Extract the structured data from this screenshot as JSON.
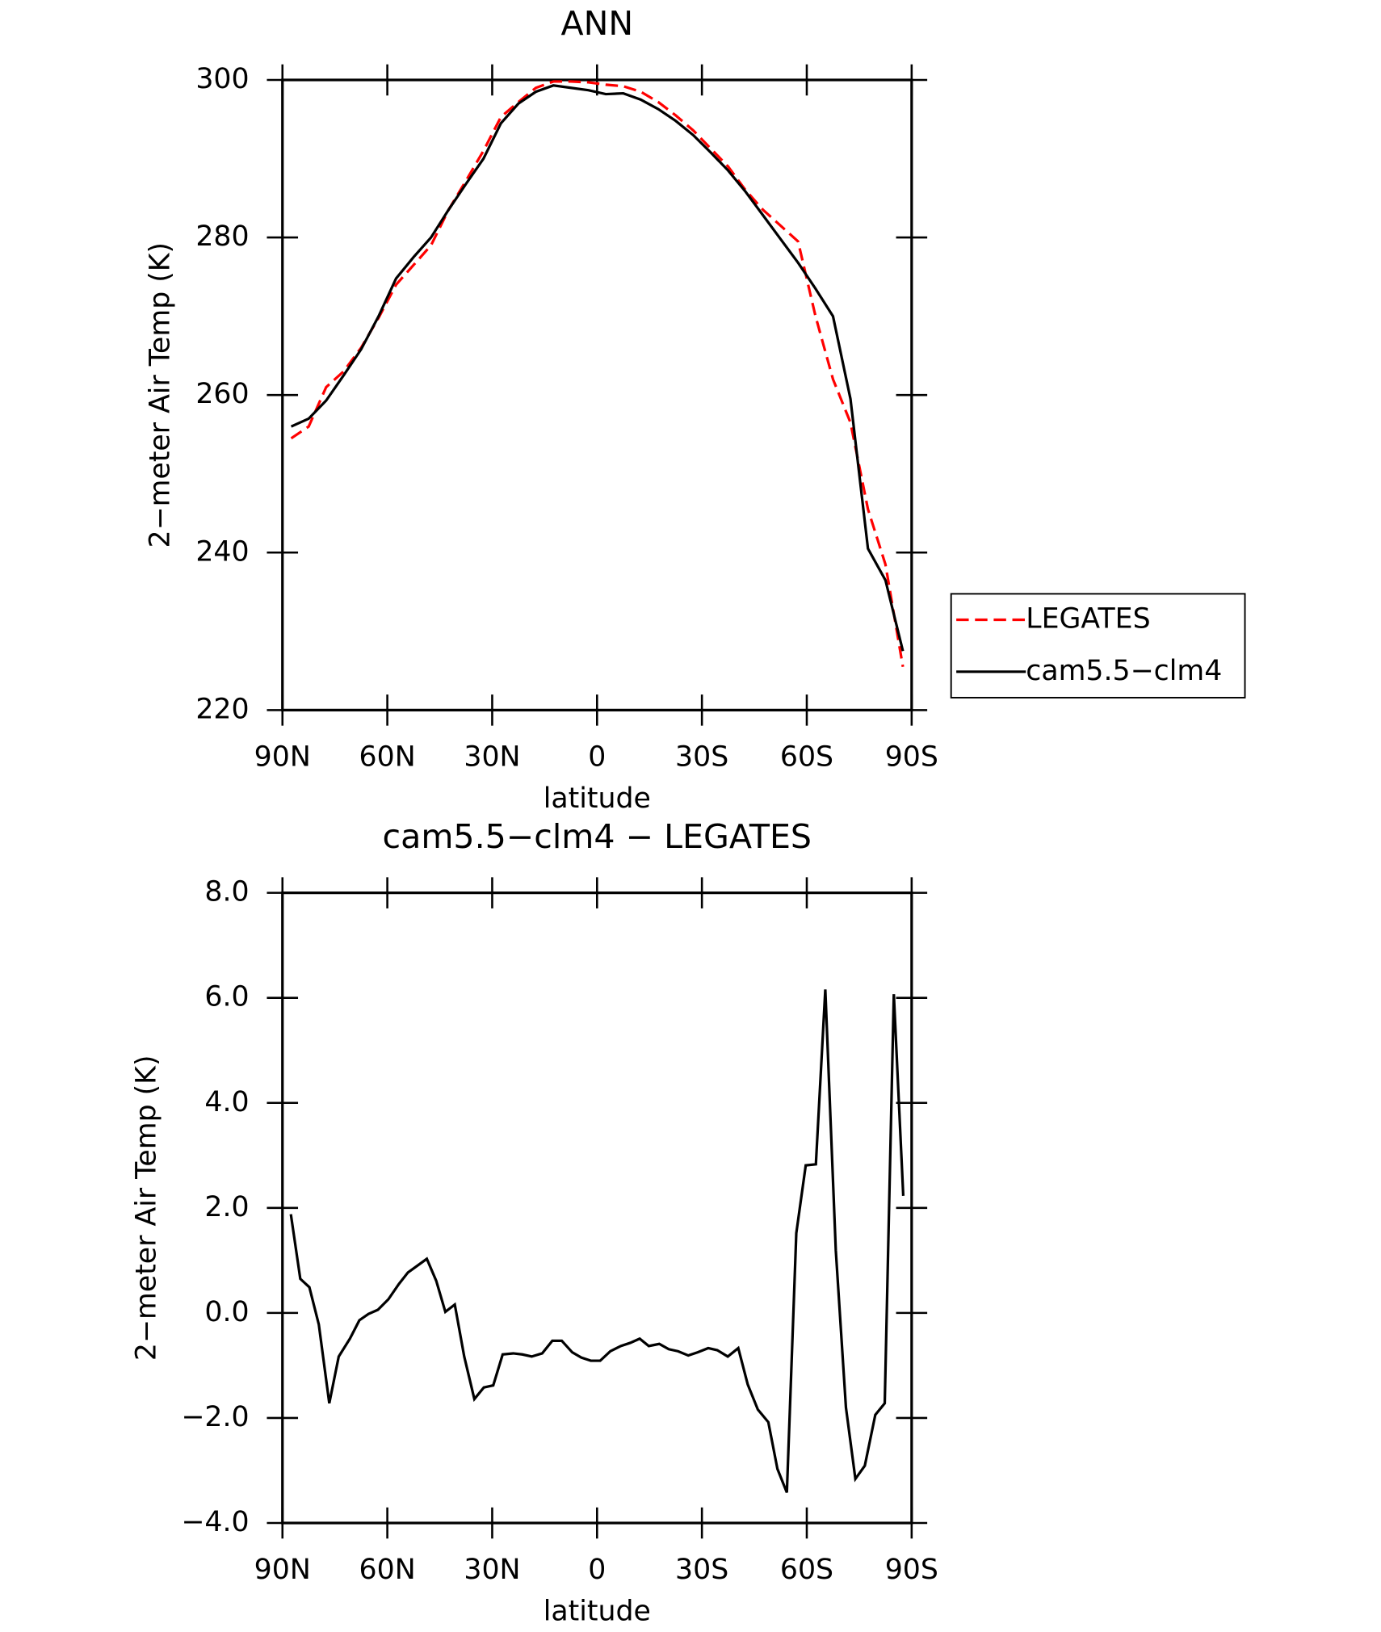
{
  "chart_data": [
    {
      "type": "line",
      "title": "ANN",
      "xlabel": "latitude",
      "ylabel": "2−meter Air Temp (K)",
      "xlim": [
        90,
        -90
      ],
      "xticks": [
        {
          "value": 90,
          "label": "90N"
        },
        {
          "value": 60,
          "label": "60N"
        },
        {
          "value": 30,
          "label": "30N"
        },
        0,
        {
          "value": -30,
          "label": "30S"
        },
        {
          "value": -60,
          "label": "60S"
        },
        {
          "value": -90,
          "label": "90S"
        }
      ],
      "ylim": [
        220,
        300
      ],
      "yticks": [
        220,
        240,
        260,
        280,
        300
      ],
      "x": [
        87.5,
        82.5,
        77.5,
        72.5,
        67.5,
        62.5,
        57.5,
        52.5,
        47.5,
        42.5,
        37.5,
        32.5,
        27.5,
        22.5,
        17.5,
        12.5,
        7.5,
        2.5,
        -2.5,
        -7.5,
        -12.5,
        -17.5,
        -22.5,
        -27.5,
        -32.5,
        -37.5,
        -42.5,
        -47.5,
        -52.5,
        -57.5,
        -62.5,
        -67.5,
        -72.5,
        -77.5,
        -82.5,
        -87.5
      ],
      "legend": "outside-right",
      "series": [
        {
          "name": "LEGATES",
          "color": "#ff0000",
          "line_style": "dashed",
          "values": [
            254.5,
            256.0,
            261.0,
            263.0,
            266.0,
            269.8,
            274.0,
            276.5,
            279.0,
            283.5,
            287.2,
            291.0,
            295.3,
            297.2,
            299.0,
            299.8,
            299.8,
            299.7,
            299.4,
            299.2,
            298.5,
            297.2,
            295.5,
            293.6,
            291.3,
            289.0,
            286.0,
            283.5,
            281.5,
            279.5,
            270.0,
            262.0,
            256.5,
            245.5,
            238.5,
            225.5
          ]
        },
        {
          "name": "cam5.5−clm4",
          "color": "#000000",
          "line_style": "solid",
          "values": [
            256.0,
            257.0,
            259.3,
            262.5,
            265.8,
            270.0,
            274.8,
            277.5,
            280.0,
            283.5,
            286.8,
            290.0,
            294.5,
            297.0,
            298.5,
            299.3,
            299.0,
            298.7,
            298.2,
            298.3,
            297.5,
            296.3,
            294.8,
            293.0,
            290.8,
            288.5,
            285.8,
            282.8,
            279.8,
            276.8,
            273.5,
            270.0,
            259.5,
            240.5,
            236.5,
            227.5
          ]
        }
      ]
    },
    {
      "type": "line",
      "title": "cam5.5−clm4 − LEGATES",
      "xlabel": "latitude",
      "ylabel": "2−meter Air Temp (K)",
      "xlim": [
        90,
        -90
      ],
      "xticks": [
        {
          "value": 90,
          "label": "90N"
        },
        {
          "value": 60,
          "label": "60N"
        },
        {
          "value": 30,
          "label": "30N"
        },
        0,
        {
          "value": -30,
          "label": "30S"
        },
        {
          "value": -60,
          "label": "60S"
        },
        {
          "value": -90,
          "label": "90S"
        }
      ],
      "ylim": [
        -4,
        8
      ],
      "yticks": [
        {
          "value": -4,
          "label": "−4.0"
        },
        {
          "value": -2,
          "label": "−2.0"
        },
        {
          "value": 0,
          "label": "0.0"
        },
        {
          "value": 2,
          "label": "2.0"
        },
        {
          "value": 4,
          "label": "4.0"
        },
        {
          "value": 6,
          "label": "6.0"
        },
        {
          "value": 8,
          "label": "8.0"
        }
      ],
      "x": [
        87.6,
        84.9,
        82.3,
        79.6,
        76.6,
        73.9,
        70.7,
        68,
        65.4,
        62.7,
        59.7,
        56.7,
        54.1,
        48.7,
        46,
        43.4,
        40.7,
        38,
        35.1,
        32.4,
        29.7,
        27,
        24,
        21.4,
        18.7,
        15.7,
        12.8,
        10.1,
        7.1,
        4.5,
        1.8,
        -0.9,
        -3.8,
        -6.8,
        -9.5,
        -12.2,
        -14.8,
        -17.8,
        -20.5,
        -23.2,
        -26.1,
        -28.8,
        -31.8,
        -34.4,
        -37.4,
        -40.4,
        -43.1,
        -46,
        -49,
        -51.6,
        -54.3,
        -57,
        -59.7,
        -62.6,
        -65.3,
        -68.3,
        -71.2,
        -73.9,
        -76.6,
        -79.6,
        -82.3,
        -84.9,
        -87.6
      ],
      "series": [
        {
          "name": "cam5.5−clm4 − LEGATES",
          "color": "#000000",
          "line_style": "solid",
          "values": [
            1.88,
            0.65,
            0.49,
            -0.22,
            -1.72,
            -0.83,
            -0.49,
            -0.14,
            -0.02,
            0.06,
            0.26,
            0.55,
            0.77,
            1.03,
            0.61,
            0.02,
            0.16,
            -0.83,
            -1.64,
            -1.42,
            -1.38,
            -0.79,
            -0.77,
            -0.79,
            -0.83,
            -0.77,
            -0.53,
            -0.53,
            -0.75,
            -0.85,
            -0.91,
            -0.91,
            -0.73,
            -0.63,
            -0.57,
            -0.49,
            -0.63,
            -0.59,
            -0.69,
            -0.73,
            -0.81,
            -0.75,
            -0.67,
            -0.71,
            -0.83,
            -0.67,
            -1.36,
            -1.84,
            -2.08,
            -2.97,
            -3.42,
            1.52,
            2.81,
            2.83,
            6.16,
            1.19,
            -1.8,
            -3.16,
            -2.91,
            -1.94,
            -1.72,
            6.07,
            2.23
          ]
        }
      ]
    }
  ]
}
